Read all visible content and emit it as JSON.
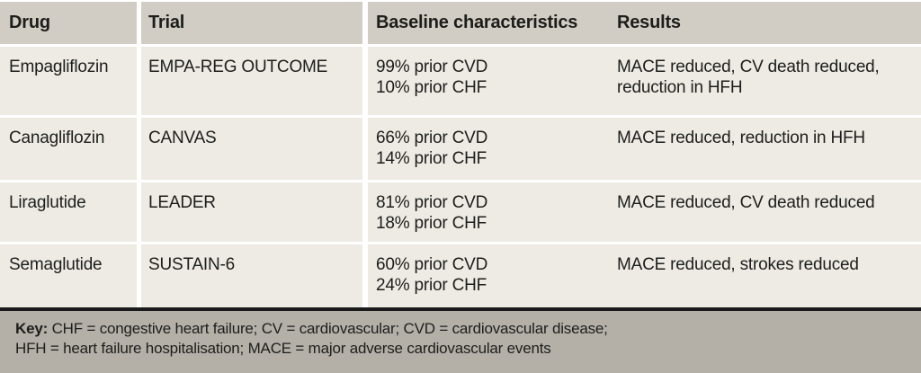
{
  "table": {
    "columns": [
      "Drug",
      "Trial",
      "Baseline characteristics",
      "Results"
    ],
    "rows": [
      {
        "drug": "Empagliflozin",
        "trial": "EMPA-REG OUTCOME",
        "baseline": "99% prior CVD\n10% prior CHF",
        "results": "MACE reduced, CV death reduced, reduction in HFH"
      },
      {
        "drug": "Canagliflozin",
        "trial": "CANVAS",
        "baseline": "66% prior CVD\n14% prior CHF",
        "results": "MACE reduced, reduction in HFH"
      },
      {
        "drug": "Liraglutide",
        "trial": "LEADER",
        "baseline": "81% prior CVD\n18% prior CHF",
        "results": "MACE reduced, CV death reduced"
      },
      {
        "drug": "Semaglutide",
        "trial": "SUSTAIN-6",
        "baseline": "60% prior CVD\n24% prior CHF",
        "results": "MACE reduced, strokes reduced"
      }
    ]
  },
  "key": {
    "label": "Key:",
    "line1": "CHF = congestive heart failure; CV = cardiovascular; CVD = cardiovascular disease;",
    "line2": "HFH = heart failure hospitalisation; MACE = major adverse cardiovascular events"
  },
  "colors": {
    "header_bg": "#d2cdc4",
    "row_bg": "#edebe4",
    "key_bg": "#b4b0a8",
    "rule": "#1a1a1a",
    "text": "#1d1d1b"
  }
}
